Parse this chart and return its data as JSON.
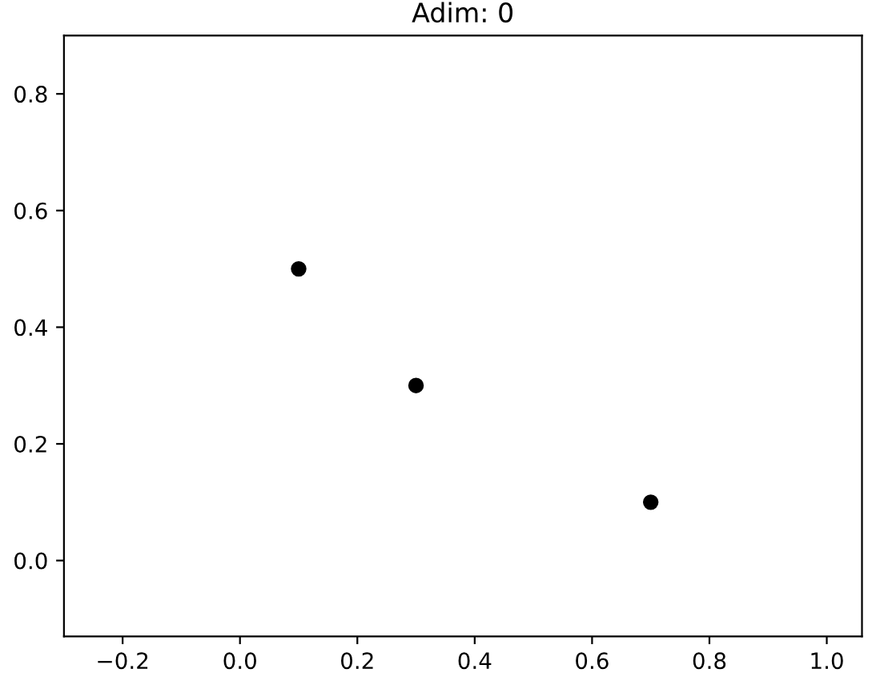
{
  "chart_data": {
    "type": "scatter",
    "title": "Adim: 0",
    "x": [
      0.1,
      0.3,
      0.7
    ],
    "series": [
      {
        "color": "#000000",
        "values": [
          0.5,
          0.3,
          0.1
        ]
      }
    ],
    "marker": "circle",
    "xlim": [
      -0.3,
      1.06
    ],
    "xticks": [
      -0.2,
      {
        "value": 0,
        "label": "0.0"
      },
      0.2,
      0.4,
      0.6,
      0.8,
      {
        "value": 1,
        "label": "1.0"
      }
    ],
    "ylim": [
      -0.13,
      0.9
    ],
    "yticks": [
      {
        "value": 0,
        "label": "0.0"
      },
      0.2,
      0.4,
      0.6,
      0.8
    ],
    "grid": false
  }
}
